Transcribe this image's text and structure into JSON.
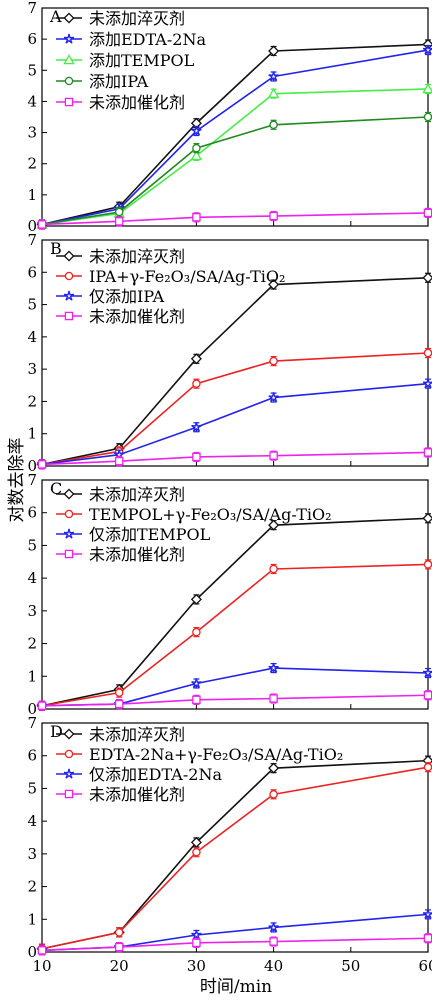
{
  "figure": {
    "ylabel": "对数去除率",
    "xlabel": "时间/min"
  },
  "chart_data": [
    {
      "type": "line",
      "panel_label": "A",
      "x": [
        10,
        20,
        30,
        40,
        60
      ],
      "xlim": [
        10,
        60
      ],
      "xticks": [
        "10",
        "20",
        "30",
        "40",
        "50",
        "60"
      ],
      "ylim": [
        0,
        7
      ],
      "yticks": [
        "0",
        "1",
        "2",
        "3",
        "4",
        "5",
        "6",
        "7"
      ],
      "legend_position": "top-left",
      "series": [
        {
          "name": "未添加淬灭剂",
          "color": "#111111",
          "marker": "diamond",
          "values": [
            0.05,
            0.62,
            3.3,
            5.62,
            5.83
          ]
        },
        {
          "name": "添加EDTA-2Na",
          "color": "#2222ee",
          "marker": "star",
          "values": [
            0.05,
            0.55,
            3.05,
            4.8,
            5.65
          ]
        },
        {
          "name": "添加TEMPOL",
          "color": "#44ee44",
          "marker": "triangle",
          "values": [
            0.05,
            0.4,
            2.25,
            4.25,
            4.4
          ]
        },
        {
          "name": "添加IPA",
          "color": "#228822",
          "marker": "circle",
          "values": [
            0.05,
            0.45,
            2.5,
            3.25,
            3.5
          ]
        },
        {
          "name": "未添加催化剂",
          "color": "#ee22ee",
          "marker": "square",
          "values": [
            0.05,
            0.15,
            0.28,
            0.32,
            0.42
          ]
        }
      ]
    },
    {
      "type": "line",
      "panel_label": "B",
      "x": [
        10,
        20,
        30,
        40,
        60
      ],
      "xlim": [
        10,
        60
      ],
      "xticks": [
        "10",
        "20",
        "30",
        "40",
        "50",
        "60"
      ],
      "ylim": [
        0,
        7
      ],
      "yticks": [
        "0",
        "1",
        "2",
        "3",
        "4",
        "5",
        "6",
        "7"
      ],
      "legend_position": "top-left",
      "series": [
        {
          "name": "未添加淬灭剂",
          "color": "#111111",
          "marker": "diamond",
          "values": [
            0.05,
            0.55,
            3.32,
            5.62,
            5.83
          ]
        },
        {
          "name": "IPA+γ-Fe₂O₃/SA/Ag-TiO₂",
          "color": "#ee2222",
          "marker": "circle",
          "values": [
            0.05,
            0.45,
            2.55,
            3.25,
            3.5
          ]
        },
        {
          "name": "仅添加IPA",
          "color": "#2222ee",
          "marker": "star",
          "values": [
            0.05,
            0.35,
            1.2,
            2.12,
            2.55
          ]
        },
        {
          "name": "未添加催化剂",
          "color": "#ee22ee",
          "marker": "square",
          "values": [
            0.05,
            0.15,
            0.28,
            0.32,
            0.42
          ]
        }
      ]
    },
    {
      "type": "line",
      "panel_label": "C",
      "x": [
        10,
        20,
        30,
        40,
        60
      ],
      "xlim": [
        10,
        60
      ],
      "xticks": [
        "10",
        "20",
        "30",
        "40",
        "50",
        "60"
      ],
      "ylim": [
        0,
        7
      ],
      "yticks": [
        "0",
        "1",
        "2",
        "3",
        "4",
        "5",
        "6",
        "7"
      ],
      "legend_position": "top-left",
      "series": [
        {
          "name": "未添加淬灭剂",
          "color": "#111111",
          "marker": "diamond",
          "values": [
            0.1,
            0.6,
            3.35,
            5.62,
            5.83
          ]
        },
        {
          "name": "TEMPOL+γ-Fe₂O₃/SA/Ag-TiO₂",
          "color": "#ee2222",
          "marker": "circle",
          "values": [
            0.1,
            0.5,
            2.35,
            4.28,
            4.42
          ]
        },
        {
          "name": "仅添加TEMPOL",
          "color": "#2222ee",
          "marker": "star",
          "values": [
            0.1,
            0.15,
            0.78,
            1.25,
            1.1
          ]
        },
        {
          "name": "未添加催化剂",
          "color": "#ee22ee",
          "marker": "square",
          "values": [
            0.1,
            0.15,
            0.28,
            0.32,
            0.42
          ]
        }
      ]
    },
    {
      "type": "line",
      "panel_label": "D",
      "x": [
        10,
        20,
        30,
        40,
        60
      ],
      "xlim": [
        10,
        60
      ],
      "xticks": [
        "10",
        "20",
        "30",
        "40",
        "50",
        "60"
      ],
      "ylim": [
        0,
        7
      ],
      "yticks": [
        "0",
        "1",
        "2",
        "3",
        "4",
        "5",
        "6",
        "7"
      ],
      "legend_position": "top-left",
      "series": [
        {
          "name": "未添加淬灭剂",
          "color": "#111111",
          "marker": "diamond",
          "values": [
            0.1,
            0.6,
            3.35,
            5.62,
            5.85
          ]
        },
        {
          "name": "EDTA-2Na+γ-Fe₂O₃/SA/Ag-TiO₂",
          "color": "#ee2222",
          "marker": "circle",
          "values": [
            0.1,
            0.6,
            3.05,
            4.82,
            5.65
          ]
        },
        {
          "name": "仅添加EDTA-2Na",
          "color": "#2222ee",
          "marker": "star",
          "values": [
            0.05,
            0.15,
            0.52,
            0.75,
            1.15
          ]
        },
        {
          "name": "未添加催化剂",
          "color": "#ee22ee",
          "marker": "square",
          "values": [
            0.05,
            0.15,
            0.28,
            0.32,
            0.42
          ]
        }
      ]
    }
  ]
}
